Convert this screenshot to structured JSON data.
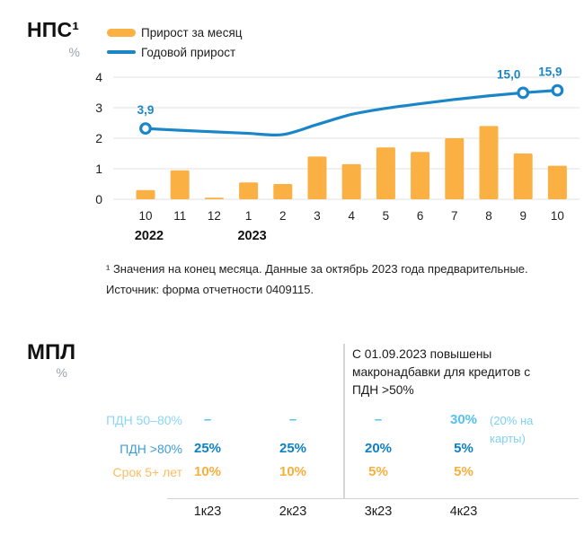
{
  "nps": {
    "title": "НПС¹",
    "unit": "%",
    "footnote_line1": "¹ Значения на конец месяца. Данные за октябрь 2023 года предварительные.",
    "footnote_line2": "Источник: форма отчетности 0409115."
  },
  "chart_data": {
    "type": "bar+line",
    "title": "НПС¹",
    "ylabel": "%",
    "ylim": [
      0,
      4
    ],
    "yticks": [
      0,
      1,
      2,
      3,
      4
    ],
    "grid": true,
    "legend_position": "top",
    "categories": [
      "10",
      "11",
      "12",
      "1",
      "2",
      "3",
      "4",
      "5",
      "6",
      "7",
      "8",
      "9",
      "10"
    ],
    "year_labels": [
      {
        "index": 0,
        "label": "2022"
      },
      {
        "index": 3,
        "label": "2023"
      }
    ],
    "series": [
      {
        "name": "Прирост за месяц",
        "type": "bar",
        "color": "#FAB043",
        "values": [
          0.3,
          0.95,
          0.05,
          0.55,
          0.5,
          1.4,
          1.15,
          1.7,
          1.55,
          2.0,
          2.4,
          1.5,
          1.1
        ]
      },
      {
        "name": "Годовой прирост",
        "type": "line",
        "color": "#1A86C7",
        "axis_note": "annual growth, % (secondary hidden axis)",
        "plotted_on_left_axis": [
          2.32,
          2.26,
          2.21,
          2.16,
          2.12,
          2.45,
          2.78,
          2.98,
          3.13,
          3.27,
          3.39,
          3.49,
          3.57
        ],
        "marker_indices": [
          0,
          11,
          12
        ],
        "point_labels": [
          {
            "index": 0,
            "label": "3,9",
            "dx": 0
          },
          {
            "index": 11,
            "label": "15,0",
            "dx": -16
          },
          {
            "index": 12,
            "label": "15,9",
            "dx": -8
          }
        ]
      }
    ]
  },
  "mpl": {
    "title": "МПЛ",
    "unit": "%",
    "note": "С 01.09.2023 повышены макронадбавки для кредитов с ПДН >50%",
    "columns": [
      "1к23",
      "2к23",
      "3к23",
      "4к23"
    ],
    "rows": [
      {
        "label": "ПДН 50–80%",
        "label_color": "#8AD5F8",
        "value_color": "#55C1F1",
        "values": [
          "–",
          "–",
          "–",
          "30%"
        ],
        "last_value_note": "(20% на карты)",
        "note_color": "#7FD0F6"
      },
      {
        "label": "ПДН >80%",
        "label_color": "#3D9DD3",
        "value_color": "#0F80C3",
        "values": [
          "25%",
          "25%",
          "20%",
          "5%"
        ]
      },
      {
        "label": "Срок 5+ лет",
        "label_color": "#FBBC60",
        "value_color": "#FAAE3C",
        "values": [
          "10%",
          "10%",
          "5%",
          "5%"
        ]
      }
    ]
  }
}
